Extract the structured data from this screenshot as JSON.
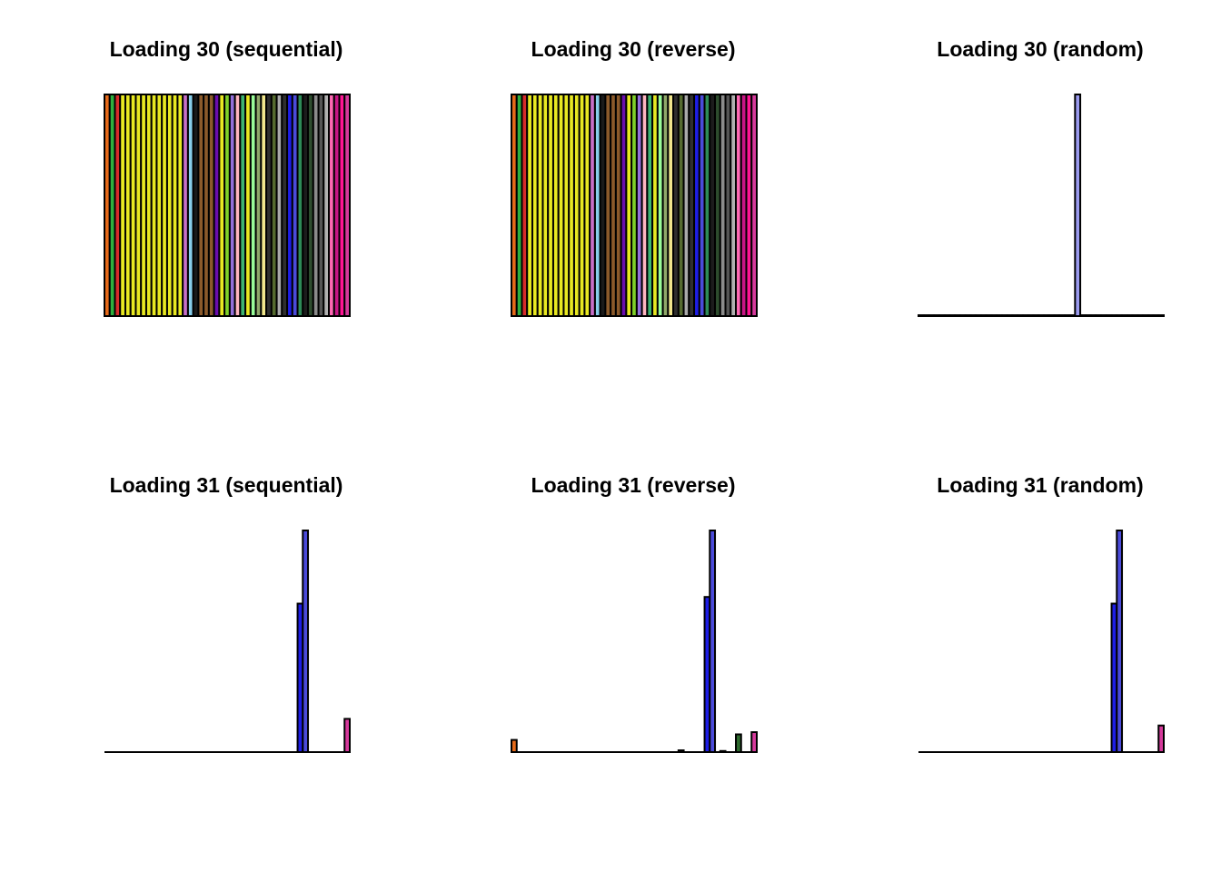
{
  "chart_data": [
    {
      "type": "bar",
      "title": "Loading 30 (sequential)",
      "ylim": [
        0,
        1
      ],
      "values": [
        1,
        1,
        1,
        1,
        1,
        1,
        1,
        1,
        1,
        1,
        1,
        1,
        1,
        1,
        1,
        1,
        1,
        1,
        1,
        1,
        1,
        1,
        1,
        1,
        1,
        1,
        1,
        1,
        1,
        1,
        1,
        1,
        1,
        1,
        1,
        1,
        1,
        1,
        1,
        1,
        1,
        1,
        1,
        1,
        1,
        1,
        1
      ],
      "colors": [
        "#E66A1A",
        "#2EAF3E",
        "#D62B2B",
        "#E8E822",
        "#E8E822",
        "#E8E822",
        "#E8E822",
        "#E8E822",
        "#E8E822",
        "#E8E822",
        "#E8E822",
        "#E8E822",
        "#E8E822",
        "#E8E822",
        "#E8E822",
        "#C86FC8",
        "#87CEEB",
        "#1A1A1A",
        "#8B5A2B",
        "#8B5A2B",
        "#8B5A2B",
        "#6A0DAD",
        "#E8E822",
        "#7FD12A",
        "#9370DB",
        "#FFB6C1",
        "#3CB371",
        "#E8E822",
        "#98FB98",
        "#8FA86A",
        "#F0E68C",
        "#2F2F2F",
        "#556B2F",
        "#A9A9A9",
        "#2F2F2F",
        "#1E1EE6",
        "#4B4BDB",
        "#2E8B57",
        "#1C1C1C",
        "#2E4D2E",
        "#8B8B8B",
        "#555555",
        "#B0B0B0",
        "#FF69B4",
        "#C71585",
        "#FF1493",
        "#D63A9C"
      ]
    },
    {
      "type": "bar",
      "title": "Loading 30 (reverse)",
      "ylim": [
        0,
        1
      ],
      "values": [
        1,
        1,
        1,
        1,
        1,
        1,
        1,
        1,
        1,
        1,
        1,
        1,
        1,
        1,
        1,
        1,
        1,
        1,
        1,
        1,
        1,
        1,
        1,
        1,
        1,
        1,
        1,
        1,
        1,
        1,
        1,
        1,
        1,
        1,
        1,
        1,
        1,
        1,
        1,
        1,
        1,
        1,
        1,
        1,
        1,
        1,
        1
      ],
      "colors": [
        "#E66A1A",
        "#2EAF3E",
        "#D62B2B",
        "#E8E822",
        "#E8E822",
        "#E8E822",
        "#E8E822",
        "#E8E822",
        "#E8E822",
        "#E8E822",
        "#E8E822",
        "#E8E822",
        "#E8E822",
        "#E8E822",
        "#E8E822",
        "#C86FC8",
        "#87CEEB",
        "#1A1A1A",
        "#8B5A2B",
        "#8B5A2B",
        "#8B5A2B",
        "#6A0DAD",
        "#E8E822",
        "#7FD12A",
        "#9370DB",
        "#FFB6C1",
        "#3CB371",
        "#E8E822",
        "#98FB98",
        "#8FA86A",
        "#F0E68C",
        "#2F2F2F",
        "#556B2F",
        "#A9A9A9",
        "#2F2F2F",
        "#1E1EE6",
        "#4B4BDB",
        "#2E8B57",
        "#1C1C1C",
        "#2E4D2E",
        "#8B8B8B",
        "#555555",
        "#B0B0B0",
        "#FF69B4",
        "#C71585",
        "#FF1493",
        "#D63A9C"
      ]
    },
    {
      "type": "bar",
      "title": "Loading 30 (random)",
      "ylim": [
        0,
        1
      ],
      "values": [
        0.004,
        0.004,
        0.004,
        0.004,
        0.004,
        0.004,
        0.004,
        0.004,
        0.004,
        0.004,
        0.004,
        0.004,
        0.004,
        0.004,
        0.004,
        0.004,
        0.004,
        0.004,
        0.004,
        0.004,
        0.004,
        0.004,
        0.004,
        0.004,
        0.004,
        0.004,
        0.004,
        0.004,
        0.004,
        0.004,
        1,
        0.004,
        0.004,
        0.004,
        0.004,
        0.004,
        0.004,
        0.004,
        0.004,
        0.004,
        0.004,
        0.004,
        0.004,
        0.004,
        0.004,
        0.004,
        0.004
      ],
      "colors": [
        "#000000",
        "#000000",
        "#000000",
        "#000000",
        "#000000",
        "#000000",
        "#000000",
        "#000000",
        "#000000",
        "#000000",
        "#000000",
        "#000000",
        "#000000",
        "#000000",
        "#000000",
        "#000000",
        "#000000",
        "#000000",
        "#000000",
        "#000000",
        "#000000",
        "#000000",
        "#000000",
        "#000000",
        "#000000",
        "#000000",
        "#000000",
        "#000000",
        "#000000",
        "#000000",
        "#9A9AEE",
        "#000000",
        "#000000",
        "#000000",
        "#000000",
        "#000000",
        "#000000",
        "#000000",
        "#000000",
        "#000000",
        "#000000",
        "#000000",
        "#000000",
        "#000000",
        "#000000",
        "#000000",
        "#000000"
      ]
    },
    {
      "type": "bar",
      "title": "Loading 31 (sequential)",
      "ylim": [
        0,
        1
      ],
      "values": [
        0,
        0,
        0,
        0,
        0,
        0,
        0,
        0,
        0,
        0,
        0,
        0,
        0,
        0,
        0,
        0,
        0,
        0,
        0,
        0,
        0,
        0,
        0,
        0,
        0,
        0,
        0,
        0,
        0,
        0,
        0,
        0,
        0,
        0,
        0,
        0,
        0,
        0.67,
        1,
        0,
        0,
        0,
        0,
        0,
        0,
        0,
        0.15
      ],
      "colors": [
        "#000000",
        "#000000",
        "#000000",
        "#000000",
        "#000000",
        "#000000",
        "#000000",
        "#000000",
        "#000000",
        "#000000",
        "#000000",
        "#000000",
        "#000000",
        "#000000",
        "#000000",
        "#000000",
        "#000000",
        "#000000",
        "#000000",
        "#000000",
        "#000000",
        "#000000",
        "#000000",
        "#000000",
        "#000000",
        "#000000",
        "#000000",
        "#000000",
        "#000000",
        "#000000",
        "#000000",
        "#000000",
        "#000000",
        "#000000",
        "#000000",
        "#000000",
        "#000000",
        "#1E1EE6",
        "#4B4BDB",
        "#000000",
        "#000000",
        "#000000",
        "#000000",
        "#000000",
        "#000000",
        "#000000",
        "#D63A9C"
      ]
    },
    {
      "type": "bar",
      "title": "Loading 31 (reverse)",
      "ylim": [
        0,
        1
      ],
      "values": [
        0.055,
        0,
        0,
        0,
        0,
        0,
        0,
        0,
        0,
        0,
        0,
        0,
        0,
        0,
        0,
        0,
        0,
        0,
        0,
        0,
        0,
        0,
        0,
        0,
        0,
        0,
        0,
        0,
        0,
        0,
        0,
        0,
        0.008,
        0,
        0,
        0,
        0,
        0.7,
        1,
        0,
        0.005,
        0,
        0,
        0.08,
        0,
        0,
        0.09
      ],
      "colors": [
        "#E66A1A",
        "#000000",
        "#000000",
        "#000000",
        "#000000",
        "#000000",
        "#000000",
        "#000000",
        "#000000",
        "#000000",
        "#000000",
        "#000000",
        "#000000",
        "#000000",
        "#000000",
        "#000000",
        "#000000",
        "#000000",
        "#000000",
        "#000000",
        "#000000",
        "#000000",
        "#000000",
        "#000000",
        "#000000",
        "#000000",
        "#000000",
        "#000000",
        "#000000",
        "#000000",
        "#000000",
        "#000000",
        "#000000",
        "#000000",
        "#000000",
        "#000000",
        "#000000",
        "#1E1EE6",
        "#4B4BDB",
        "#000000",
        "#000000",
        "#000000",
        "#000000",
        "#2E6B2E",
        "#000000",
        "#000000",
        "#D63A9C"
      ]
    },
    {
      "type": "bar",
      "title": "Loading 31 (random)",
      "ylim": [
        0,
        1
      ],
      "values": [
        0,
        0,
        0,
        0,
        0,
        0,
        0,
        0,
        0,
        0,
        0,
        0,
        0,
        0,
        0,
        0,
        0,
        0,
        0,
        0,
        0,
        0,
        0,
        0,
        0,
        0,
        0,
        0,
        0,
        0,
        0,
        0,
        0,
        0,
        0,
        0,
        0,
        0.67,
        1,
        0,
        0,
        0,
        0,
        0,
        0,
        0,
        0.12
      ],
      "colors": [
        "#000000",
        "#000000",
        "#000000",
        "#000000",
        "#000000",
        "#000000",
        "#000000",
        "#000000",
        "#000000",
        "#000000",
        "#000000",
        "#000000",
        "#000000",
        "#000000",
        "#000000",
        "#000000",
        "#000000",
        "#000000",
        "#000000",
        "#000000",
        "#000000",
        "#000000",
        "#000000",
        "#000000",
        "#000000",
        "#000000",
        "#000000",
        "#000000",
        "#000000",
        "#000000",
        "#000000",
        "#000000",
        "#000000",
        "#000000",
        "#000000",
        "#000000",
        "#000000",
        "#1E1EE6",
        "#4B4BDB",
        "#000000",
        "#000000",
        "#000000",
        "#000000",
        "#000000",
        "#000000",
        "#000000",
        "#D63A9C"
      ]
    }
  ]
}
